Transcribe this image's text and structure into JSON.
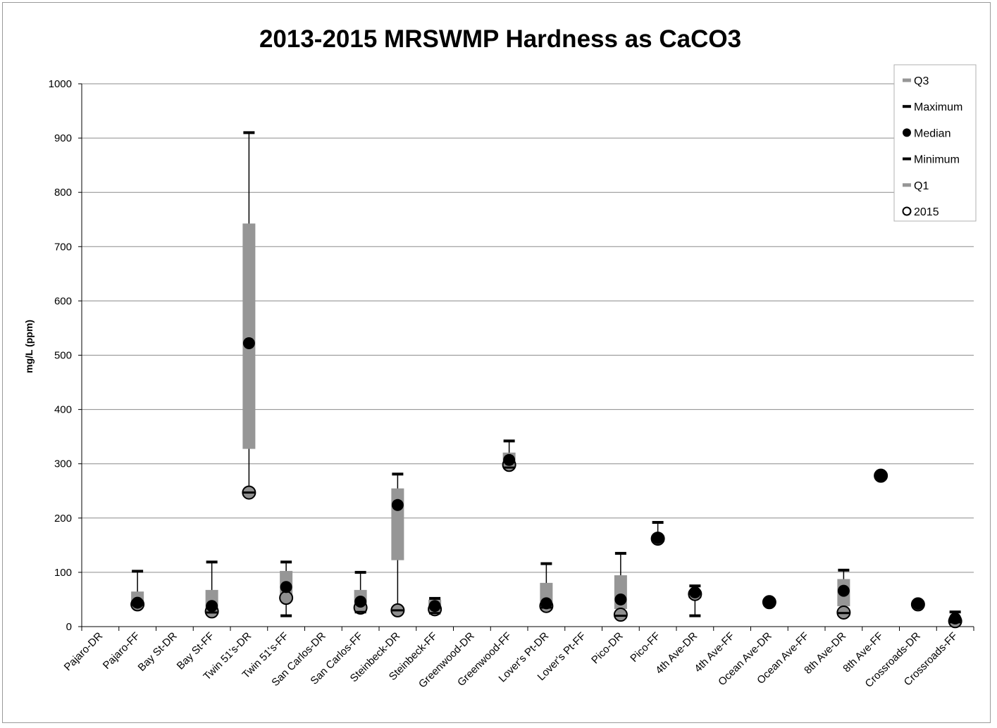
{
  "chart_data": {
    "type": "box",
    "title": "2013-2015 MRSWMP Hardness as CaCO3",
    "xlabel": "",
    "ylabel": "mg/L  (ppm)",
    "ylim": [
      0,
      1000
    ],
    "yticks": [
      0,
      100,
      200,
      300,
      400,
      500,
      600,
      700,
      800,
      900,
      1000
    ],
    "grid": true,
    "legend_position": "top-right",
    "legend": [
      "Q3",
      "Maximum",
      "Median",
      "Minimum",
      "Q1",
      "2015"
    ],
    "categories": [
      "Pajaro-DR",
      "Pajaro-FF",
      "Bay St-DR",
      "Bay St-FF",
      "Twin 51's-DR",
      "Twin 51's-FF",
      "San Carlos-DR",
      "San Carlos-FF",
      "Steinbeck-DR",
      "Steinbeck-FF",
      "Greenwood-DR",
      "Greenwood-FF",
      "Lover's Pt-DR",
      "Lover's Pt-FF",
      "Pico-DR",
      "Pico-FF",
      "4th Ave-DR",
      "4th Ave-FF",
      "Ocean Ave-DR",
      "Ocean Ave-FF",
      "8th Ave-DR",
      "8th Ave-FF",
      "Crossroads-DR",
      "Crossroads-FF"
    ],
    "series": [
      {
        "name": "Q3",
        "color": "#969696",
        "values": [
          null,
          62,
          null,
          65,
          740,
          100,
          null,
          65,
          252,
          47,
          null,
          318,
          78,
          null,
          92,
          163,
          63,
          null,
          45,
          null,
          85,
          278,
          42,
          15
        ]
      },
      {
        "name": "Maximum",
        "color": "#000000",
        "values": [
          null,
          102,
          null,
          119,
          910,
          119,
          null,
          100,
          281,
          52,
          null,
          342,
          116,
          null,
          135,
          192,
          75,
          null,
          45,
          null,
          104,
          278,
          42,
          27
        ]
      },
      {
        "name": "Median",
        "color": "#000000",
        "values": [
          null,
          44,
          null,
          38,
          522,
          73,
          null,
          46,
          224,
          38,
          null,
          307,
          43,
          null,
          50,
          163,
          63,
          null,
          45,
          null,
          66,
          278,
          42,
          15
        ]
      },
      {
        "name": "Minimum",
        "color": "#000000",
        "values": [
          null,
          40,
          null,
          26,
          247,
          20,
          null,
          27,
          30,
          25,
          null,
          293,
          35,
          null,
          20,
          160,
          20,
          null,
          45,
          null,
          25,
          278,
          40,
          8
        ]
      },
      {
        "name": "Q1",
        "color": "#969696",
        "values": [
          null,
          40,
          null,
          27,
          330,
          52,
          null,
          30,
          125,
          28,
          null,
          295,
          40,
          null,
          35,
          160,
          55,
          null,
          45,
          null,
          40,
          278,
          40,
          10
        ]
      },
      {
        "name": "2015",
        "color": "#000000",
        "values": [
          null,
          41,
          null,
          28,
          247,
          53,
          null,
          35,
          30,
          32,
          null,
          298,
          38,
          null,
          22,
          162,
          60,
          null,
          45,
          null,
          26,
          278,
          41,
          10
        ]
      }
    ]
  }
}
